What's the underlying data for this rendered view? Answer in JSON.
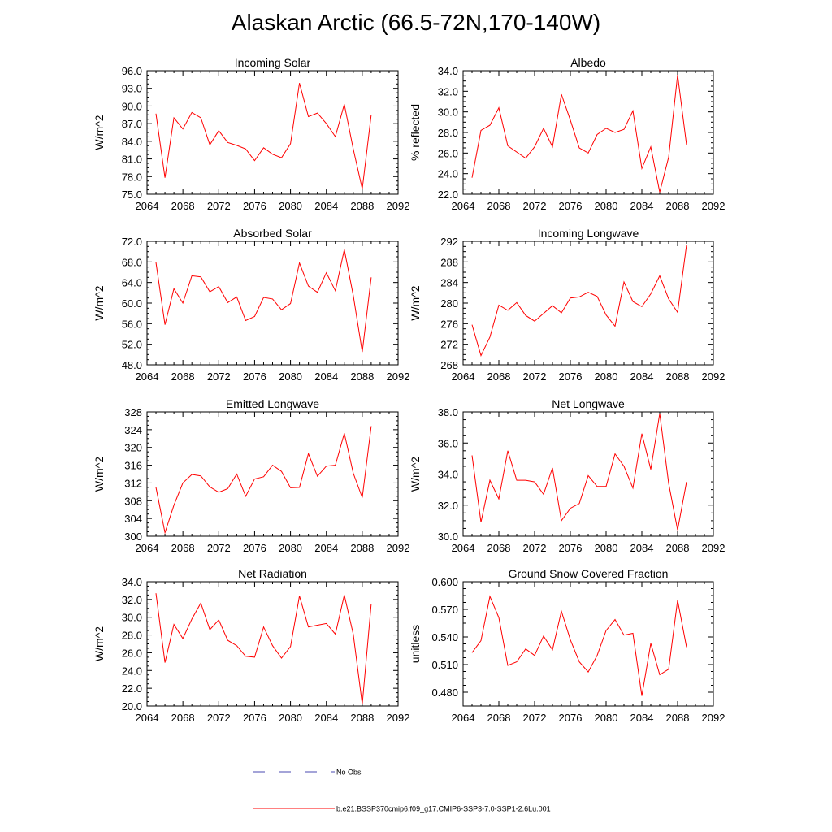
{
  "title": "Alaskan Arctic (66.5-72N,170-140W)",
  "legend": {
    "obs_label": "No Obs",
    "model_label": "b.e21.BSSP370cmip6.f09_g17.CMIP6-SSP3-7.0-SSP1-2.6Lu.001",
    "model_color": "#ff0000",
    "obs_color": "#4a4ab0"
  },
  "x": [
    2065,
    2066,
    2067,
    2068,
    2069,
    2070,
    2071,
    2072,
    2073,
    2074,
    2075,
    2076,
    2077,
    2078,
    2079,
    2080,
    2081,
    2082,
    2083,
    2084,
    2085,
    2086,
    2087,
    2088,
    2089
  ],
  "chart_data": [
    {
      "type": "line",
      "title": "Incoming Solar",
      "ylabel": "W/m^2",
      "xlim": [
        2064,
        2092
      ],
      "ylim": [
        75,
        96
      ],
      "xticks": [
        "2064",
        "2068",
        "2072",
        "2076",
        "2080",
        "2084",
        "2088",
        "2092"
      ],
      "yticks": [
        "75.0",
        "78.0",
        "81.0",
        "84.0",
        "87.0",
        "90.0",
        "93.0",
        "96.0"
      ],
      "series": [
        {
          "values": [
            88.7,
            77.8,
            88.0,
            86.1,
            88.9,
            88.0,
            83.4,
            85.8,
            83.8,
            83.3,
            82.7,
            80.7,
            82.9,
            81.8,
            81.2,
            83.6,
            93.9,
            88.2,
            88.8,
            87.0,
            84.8,
            90.3,
            82.7,
            75.9,
            88.5
          ]
        }
      ]
    },
    {
      "type": "line",
      "title": "Albedo",
      "ylabel": "% reflected",
      "xlim": [
        2064,
        2092
      ],
      "ylim": [
        22,
        34
      ],
      "xticks": [
        "2064",
        "2068",
        "2072",
        "2076",
        "2080",
        "2084",
        "2088",
        "2092"
      ],
      "yticks": [
        "22.0",
        "24.0",
        "26.0",
        "28.0",
        "30.0",
        "32.0",
        "34.0"
      ],
      "series": [
        {
          "values": [
            23.6,
            28.2,
            28.7,
            30.4,
            26.7,
            26.1,
            25.5,
            26.6,
            28.4,
            26.6,
            31.7,
            29.2,
            26.5,
            26.0,
            27.8,
            28.4,
            28.0,
            28.3,
            30.1,
            24.5,
            26.6,
            22.2,
            25.6,
            33.6,
            26.8
          ]
        }
      ]
    },
    {
      "type": "line",
      "title": "Absorbed Solar",
      "ylabel": "W/m^2",
      "xlim": [
        2064,
        2092
      ],
      "ylim": [
        48,
        72
      ],
      "xticks": [
        "2064",
        "2068",
        "2072",
        "2076",
        "2080",
        "2084",
        "2088",
        "2092"
      ],
      "yticks": [
        "48.0",
        "52.0",
        "56.0",
        "60.0",
        "64.0",
        "68.0",
        "72.0"
      ],
      "series": [
        {
          "values": [
            67.9,
            55.8,
            62.8,
            60.0,
            65.3,
            65.1,
            62.2,
            63.2,
            60.1,
            61.2,
            56.6,
            57.4,
            61.1,
            60.8,
            58.7,
            59.9,
            67.8,
            63.3,
            62.1,
            65.9,
            62.4,
            70.4,
            61.5,
            50.5,
            65.0
          ]
        }
      ]
    },
    {
      "type": "line",
      "title": "Incoming Longwave",
      "ylabel": "W/m^2",
      "xlim": [
        2064,
        2092
      ],
      "ylim": [
        268,
        292
      ],
      "xticks": [
        "2064",
        "2068",
        "2072",
        "2076",
        "2080",
        "2084",
        "2088",
        "2092"
      ],
      "yticks": [
        "268",
        "272",
        "276",
        "280",
        "284",
        "288",
        "292"
      ],
      "series": [
        {
          "values": [
            275.8,
            269.8,
            273.4,
            279.6,
            278.6,
            280.1,
            277.6,
            276.5,
            278.0,
            279.5,
            278.1,
            281.0,
            281.2,
            282.1,
            281.3,
            277.7,
            275.5,
            284.1,
            280.3,
            279.3,
            281.8,
            285.3,
            280.8,
            278.2,
            291.3
          ]
        }
      ]
    },
    {
      "type": "line",
      "title": "Emitted Longwave",
      "ylabel": "W/m^2",
      "xlim": [
        2064,
        2092
      ],
      "ylim": [
        300,
        328
      ],
      "xticks": [
        "2064",
        "2068",
        "2072",
        "2076",
        "2080",
        "2084",
        "2088",
        "2092"
      ],
      "yticks": [
        "300",
        "304",
        "308",
        "312",
        "316",
        "320",
        "324",
        "328"
      ],
      "series": [
        {
          "values": [
            311.0,
            300.8,
            307.0,
            312.0,
            313.9,
            313.6,
            311.1,
            309.9,
            310.7,
            314.0,
            309.0,
            312.9,
            313.4,
            316.0,
            314.6,
            310.9,
            311.0,
            318.6,
            313.5,
            315.8,
            316.0,
            323.2,
            314.2,
            308.7,
            324.8
          ]
        }
      ]
    },
    {
      "type": "line",
      "title": "Net Longwave",
      "ylabel": "W/m^2",
      "xlim": [
        2064,
        2092
      ],
      "ylim": [
        30,
        38
      ],
      "xticks": [
        "2064",
        "2068",
        "2072",
        "2076",
        "2080",
        "2084",
        "2088",
        "2092"
      ],
      "yticks": [
        "30.0",
        "32.0",
        "34.0",
        "36.0",
        "38.0"
      ],
      "series": [
        {
          "values": [
            35.2,
            30.9,
            33.6,
            32.4,
            35.5,
            33.6,
            33.6,
            33.5,
            32.7,
            34.4,
            31.0,
            31.8,
            32.1,
            33.9,
            33.2,
            33.2,
            35.3,
            34.5,
            33.1,
            36.6,
            34.3,
            37.9,
            33.4,
            30.4,
            33.5
          ]
        }
      ]
    },
    {
      "type": "line",
      "title": "Net Radiation",
      "ylabel": "W/m^2",
      "xlim": [
        2064,
        2092
      ],
      "ylim": [
        20,
        34
      ],
      "xticks": [
        "2064",
        "2068",
        "2072",
        "2076",
        "2080",
        "2084",
        "2088",
        "2092"
      ],
      "yticks": [
        "20.0",
        "22.0",
        "24.0",
        "26.0",
        "28.0",
        "30.0",
        "32.0",
        "34.0"
      ],
      "series": [
        {
          "values": [
            32.7,
            24.9,
            29.2,
            27.6,
            29.8,
            31.6,
            28.6,
            29.7,
            27.4,
            26.8,
            25.6,
            25.5,
            28.9,
            26.8,
            25.4,
            26.7,
            32.4,
            28.9,
            29.1,
            29.3,
            28.1,
            32.5,
            28.1,
            20.2,
            31.5
          ]
        }
      ]
    },
    {
      "type": "line",
      "title": "Ground Snow Covered Fraction",
      "ylabel": "unitless",
      "xlim": [
        2064,
        2092
      ],
      "ylim": [
        0.465,
        0.6
      ],
      "xticks": [
        "2064",
        "2068",
        "2072",
        "2076",
        "2080",
        "2084",
        "2088",
        "2092"
      ],
      "yticks": [
        "0.480",
        "0.510",
        "0.540",
        "0.570",
        "0.600"
      ],
      "ytick_values": [
        0.48,
        0.51,
        0.54,
        0.57,
        0.6
      ],
      "series": [
        {
          "values": [
            0.523,
            0.536,
            0.584,
            0.561,
            0.509,
            0.513,
            0.527,
            0.52,
            0.541,
            0.526,
            0.568,
            0.537,
            0.513,
            0.502,
            0.52,
            0.547,
            0.559,
            0.542,
            0.544,
            0.476,
            0.533,
            0.499,
            0.505,
            0.58,
            0.529
          ]
        }
      ]
    }
  ]
}
